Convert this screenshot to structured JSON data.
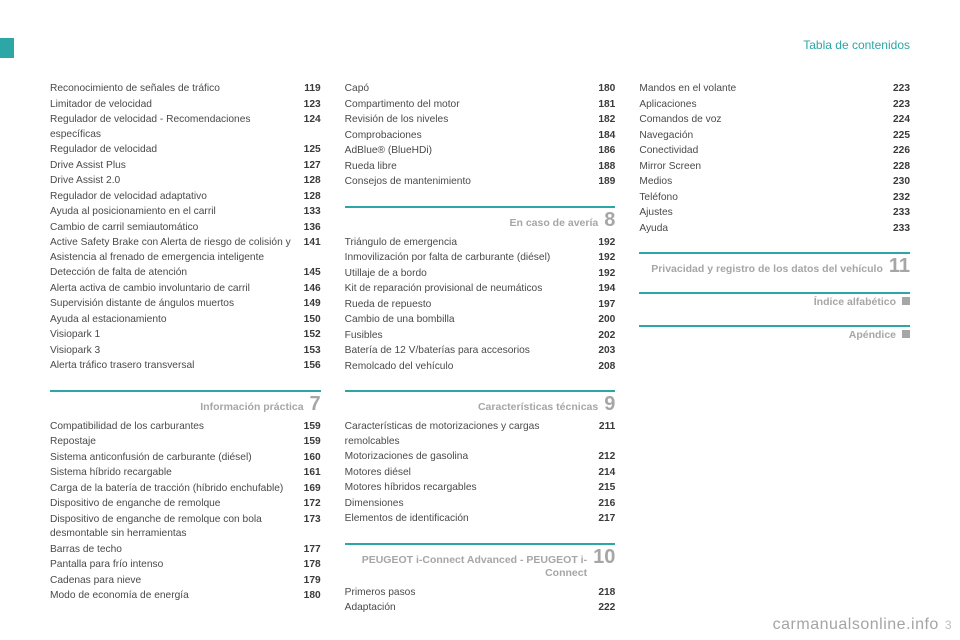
{
  "header": {
    "title": "Tabla de contenidos"
  },
  "accent_color": "#2da6a6",
  "watermark": "carmanualsonline.info",
  "page_number": "3",
  "col1": {
    "entries_a": [
      {
        "label": "Reconocimiento de señales de tráfico",
        "page": "119"
      },
      {
        "label": "Limitador de velocidad",
        "page": "123"
      },
      {
        "label": "Regulador de velocidad - Recomendaciones específicas",
        "page": "124"
      },
      {
        "label": "Regulador de velocidad",
        "page": "125"
      },
      {
        "label": "Drive Assist Plus",
        "page": "127"
      },
      {
        "label": "Drive Assist 2.0",
        "page": "128"
      },
      {
        "label": "Regulador de velocidad adaptativo",
        "page": "128"
      },
      {
        "label": "Ayuda al posicionamiento en el carril",
        "page": "133"
      },
      {
        "label": "Cambio de carril semiautomático",
        "page": "136"
      },
      {
        "label": "Active Safety Brake con Alerta de riesgo de colisión y Asistencia al frenado de emergencia inteligente",
        "page": "141"
      },
      {
        "label": "Detección de falta de atención",
        "page": "145"
      },
      {
        "label": "Alerta activa de cambio involuntario de carril",
        "page": "146"
      },
      {
        "label": "Supervisión distante de ángulos muertos",
        "page": "149"
      },
      {
        "label": "Ayuda al estacionamiento",
        "page": "150"
      },
      {
        "label": "Visiopark 1",
        "page": "152"
      },
      {
        "label": "Visiopark 3",
        "page": "153"
      },
      {
        "label": "Alerta tráfico trasero transversal",
        "page": "156"
      }
    ],
    "section_a": {
      "title": "Información práctica",
      "num": "7"
    },
    "entries_b": [
      {
        "label": "Compatibilidad de los carburantes",
        "page": "159"
      },
      {
        "label": "Repostaje",
        "page": "159"
      },
      {
        "label": "Sistema anticonfusión de carburante (diésel)",
        "page": "160"
      },
      {
        "label": "Sistema híbrido recargable",
        "page": "161"
      },
      {
        "label": "Carga de la batería de tracción (híbrido enchufable)",
        "page": "169"
      },
      {
        "label": "Dispositivo de enganche de remolque",
        "page": "172"
      },
      {
        "label": "Dispositivo de enganche de remolque con bola desmontable sin herramientas",
        "page": "173"
      },
      {
        "label": "Barras de techo",
        "page": "177"
      },
      {
        "label": "Pantalla para frío intenso",
        "page": "178"
      },
      {
        "label": "Cadenas para nieve",
        "page": "179"
      },
      {
        "label": "Modo de economía de energía",
        "page": "180"
      }
    ]
  },
  "col2": {
    "entries_a": [
      {
        "label": "Capó",
        "page": "180"
      },
      {
        "label": "Compartimento del motor",
        "page": "181"
      },
      {
        "label": "Revisión de los niveles",
        "page": "182"
      },
      {
        "label": "Comprobaciones",
        "page": "184"
      },
      {
        "label": "AdBlue® (BlueHDi)",
        "page": "186"
      },
      {
        "label": "Rueda libre",
        "page": "188"
      },
      {
        "label": "Consejos de mantenimiento",
        "page": "189"
      }
    ],
    "section_a": {
      "title": "En caso de avería",
      "num": "8"
    },
    "entries_b": [
      {
        "label": "Triángulo de emergencia",
        "page": "192"
      },
      {
        "label": "Inmovilización por falta de carburante (diésel)",
        "page": "192"
      },
      {
        "label": "Utillaje de a bordo",
        "page": "192"
      },
      {
        "label": "Kit de reparación provisional de neumáticos",
        "page": "194"
      },
      {
        "label": "Rueda de repuesto",
        "page": "197"
      },
      {
        "label": "Cambio de una bombilla",
        "page": "200"
      },
      {
        "label": "Fusibles",
        "page": "202"
      },
      {
        "label": "Batería de 12 V/baterías para accesorios",
        "page": "203"
      },
      {
        "label": "Remolcado del vehículo",
        "page": "208"
      }
    ],
    "section_b": {
      "title": "Características técnicas",
      "num": "9"
    },
    "entries_c": [
      {
        "label": "Características de motorizaciones y cargas remolcables",
        "page": "211"
      },
      {
        "label": "Motorizaciones de gasolina",
        "page": "212"
      },
      {
        "label": "Motores diésel",
        "page": "214"
      },
      {
        "label": "Motores híbridos recargables",
        "page": "215"
      },
      {
        "label": "Dimensiones",
        "page": "216"
      },
      {
        "label": "Elementos de identificación",
        "page": "217"
      }
    ],
    "section_c": {
      "title": "PEUGEOT i-Connect Advanced - PEUGEOT i-Connect",
      "num": "10"
    },
    "entries_d": [
      {
        "label": "Primeros pasos",
        "page": "218"
      },
      {
        "label": "Adaptación",
        "page": "222"
      }
    ]
  },
  "col3": {
    "entries_a": [
      {
        "label": "Mandos en el volante",
        "page": "223"
      },
      {
        "label": "Aplicaciones",
        "page": "223"
      },
      {
        "label": "Comandos de voz",
        "page": "224"
      },
      {
        "label": "Navegación",
        "page": "225"
      },
      {
        "label": "Conectividad",
        "page": "226"
      },
      {
        "label": "Mirror Screen",
        "page": "228"
      },
      {
        "label": "Medios",
        "page": "230"
      },
      {
        "label": "Teléfono",
        "page": "232"
      },
      {
        "label": "Ajustes",
        "page": "233"
      },
      {
        "label": "Ayuda",
        "page": "233"
      }
    ],
    "section_a": {
      "title": "Privacidad y registro de los datos del vehículo",
      "num": "11"
    },
    "section_b": {
      "title": "Índice alfabético",
      "marker": true
    },
    "section_c": {
      "title": "Apéndice",
      "marker": true
    }
  }
}
